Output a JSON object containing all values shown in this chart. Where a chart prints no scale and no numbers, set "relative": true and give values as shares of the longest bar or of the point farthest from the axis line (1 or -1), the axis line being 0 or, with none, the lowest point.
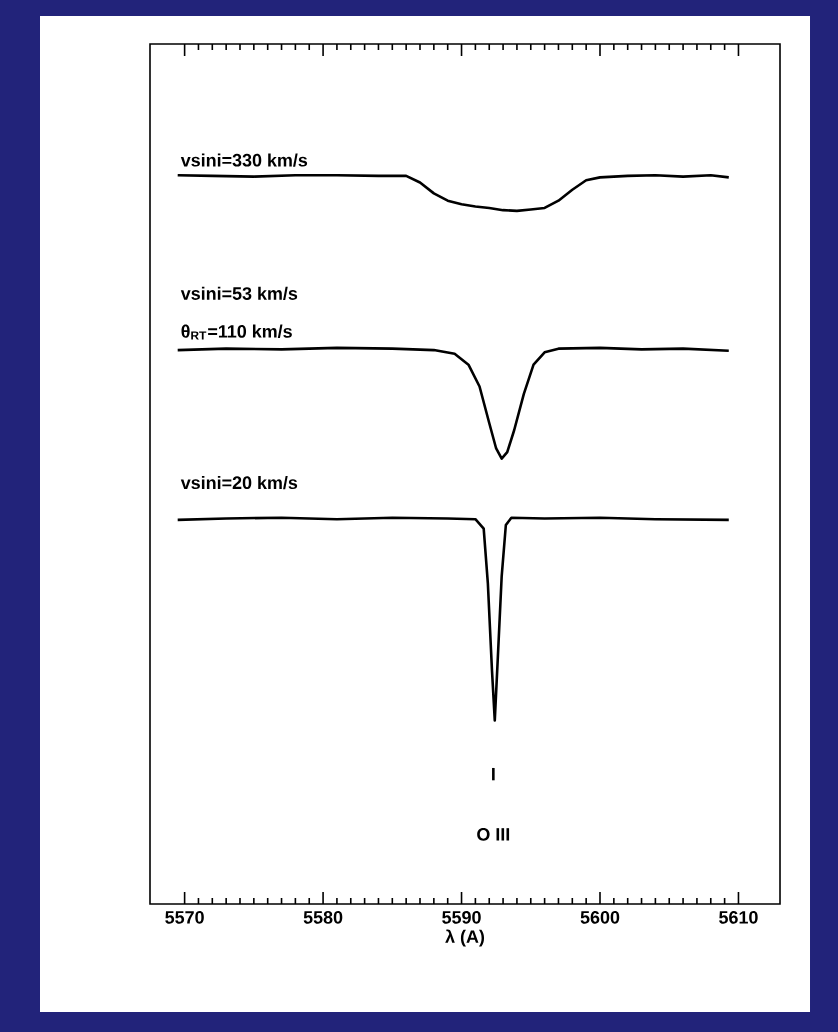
{
  "chart_data": {
    "type": "line",
    "relative": true,
    "xlabel": "λ (A)",
    "xlim": [
      5567.5,
      5613
    ],
    "xticks": [
      5570,
      5580,
      5590,
      5600,
      5610
    ],
    "tick_labels": "x",
    "series": [
      {
        "color": "#000000",
        "x": [
          5569.5,
          5572,
          5575,
          5578,
          5581,
          5584,
          5586,
          5587,
          5588,
          5589,
          5590,
          5591,
          5592,
          5593,
          5594,
          5595,
          5596,
          5597,
          5598,
          5599,
          5600,
          5602,
          5604,
          5606,
          5608,
          5609.3
        ],
        "values": [
          1.0,
          0.999,
          0.998,
          1.0,
          1.0,
          0.999,
          0.999,
          0.99,
          0.975,
          0.965,
          0.96,
          0.957,
          0.955,
          0.952,
          0.951,
          0.953,
          0.955,
          0.965,
          0.98,
          0.993,
          0.997,
          0.999,
          1.0,
          0.998,
          1.0,
          0.997
        ]
      },
      {
        "color": "#000000",
        "x": [
          5569.5,
          5573,
          5577,
          5581,
          5585,
          5588,
          5589.5,
          5590.5,
          5591.3,
          5592,
          5592.5,
          5592.9,
          5593.3,
          5593.8,
          5594.5,
          5595.2,
          5596,
          5597,
          5600,
          5603,
          5606,
          5609.3
        ],
        "values": [
          0.76,
          0.762,
          0.761,
          0.763,
          0.762,
          0.76,
          0.755,
          0.74,
          0.71,
          0.66,
          0.625,
          0.611,
          0.62,
          0.65,
          0.7,
          0.74,
          0.757,
          0.762,
          0.763,
          0.761,
          0.762,
          0.759
        ]
      },
      {
        "color": "#000000",
        "x": [
          5569.5,
          5573,
          5577,
          5581,
          5585,
          5589,
          5591,
          5591.6,
          5591.9,
          5592.2,
          5592.4,
          5592.6,
          5592.9,
          5593.2,
          5593.6,
          5596,
          5600,
          5604,
          5609.3
        ],
        "values": [
          0.527,
          0.529,
          0.53,
          0.528,
          0.53,
          0.529,
          0.528,
          0.515,
          0.44,
          0.32,
          0.252,
          0.33,
          0.45,
          0.52,
          0.53,
          0.529,
          0.53,
          0.528,
          0.527
        ]
      }
    ],
    "annotations": [
      "vsini=330 km/s",
      "vsini=53 km/s",
      "θ$_{RT}$=110 km/s",
      "vsini=20 km/s",
      "I",
      "O III"
    ]
  }
}
